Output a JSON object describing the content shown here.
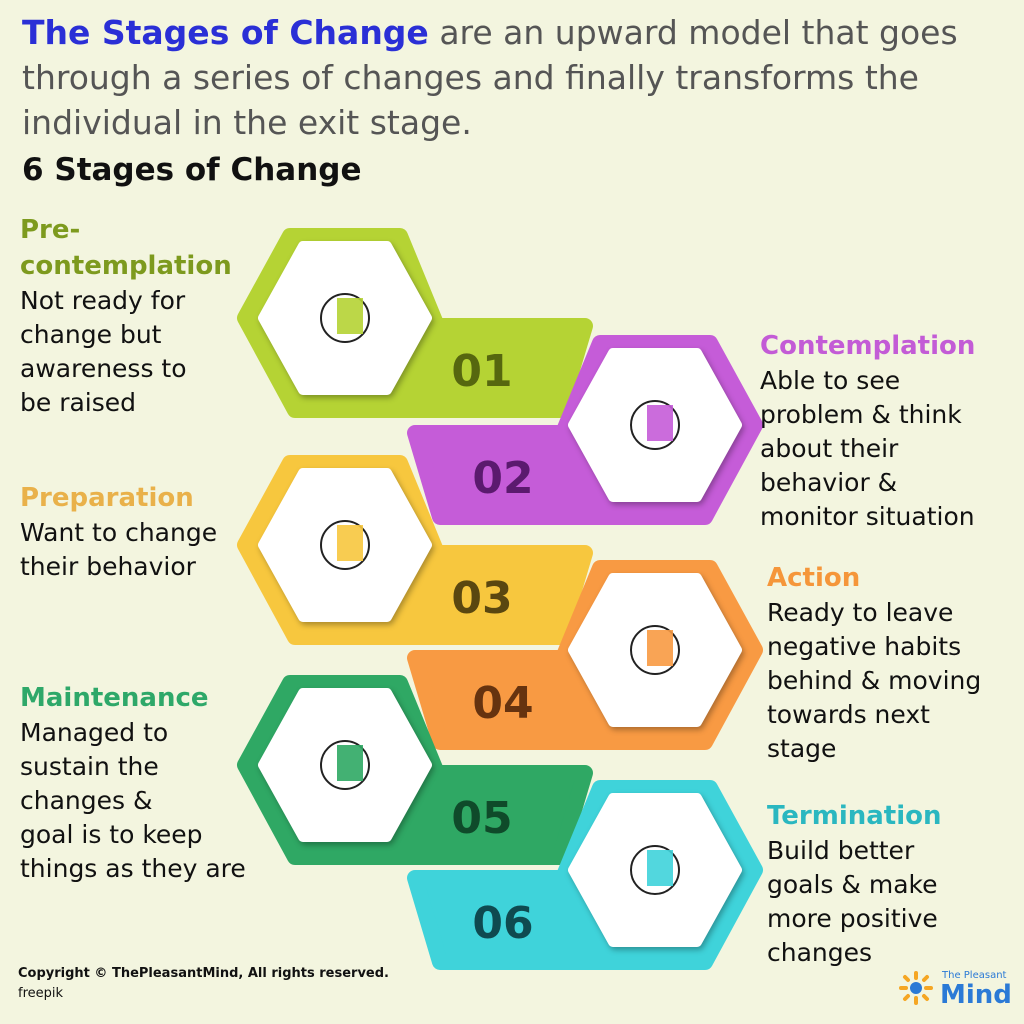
{
  "header": {
    "title_highlight": "The Stages of Change",
    "title_rest": "are an upward model that goes through a series of changes and finally transforms the individual in the exit stage.",
    "subtitle": "6 Stages of Change"
  },
  "stages": [
    {
      "number": "01",
      "title": "Pre-contemplation",
      "description": [
        "Not ready for",
        "change but",
        "awareness to",
        "be raised"
      ],
      "color": "#b5d334",
      "number_color": "#56670f",
      "title_color": "#7d9a1e"
    },
    {
      "number": "02",
      "title": "Contemplation",
      "description": [
        "Able to see",
        "problem & think",
        "about their",
        "behavior &",
        "monitor situation"
      ],
      "color": "#c55cd8",
      "number_color": "#5b1a6e",
      "title_color": "#c35bd6"
    },
    {
      "number": "03",
      "title": "Preparation",
      "description": [
        "Want to change",
        "their behavior"
      ],
      "color": "#f7c73e",
      "number_color": "#5a4710",
      "title_color": "#e9b14a"
    },
    {
      "number": "04",
      "title": "Action",
      "description": [
        "Ready to leave",
        "negative habits",
        "behind & moving",
        "towards next",
        "stage"
      ],
      "color": "#f89a43",
      "number_color": "#66330f",
      "title_color": "#f5963a"
    },
    {
      "number": "05",
      "title": "Maintenance",
      "description": [
        "Managed to",
        "sustain the",
        "changes &",
        "goal is to keep",
        "things as they are"
      ],
      "color": "#2fa864",
      "number_color": "#0f4a2a",
      "title_color": "#2ea869"
    },
    {
      "number": "06",
      "title": "Termination",
      "description": [
        "Build better",
        "goals & make",
        "more positive",
        "changes"
      ],
      "color": "#3fd3da",
      "number_color": "#0f4a50",
      "title_color": "#2ab7c0"
    }
  ],
  "footer": {
    "copyright": "Copyright © ThePleasantMind, All rights reserved.",
    "credit": "freepik",
    "logo_small": "The Pleasant",
    "logo_big": "Mind"
  }
}
